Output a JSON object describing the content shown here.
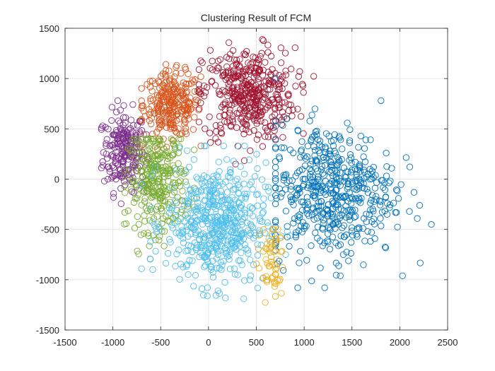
{
  "chart_data": {
    "type": "scatter",
    "title": "Clustering Result of FCM",
    "xlabel": "",
    "ylabel": "",
    "xlim": [
      -1500,
      2500
    ],
    "ylim": [
      -1500,
      1500
    ],
    "xticks": [
      -1500,
      -1000,
      -500,
      0,
      500,
      1000,
      1500,
      2000,
      2500
    ],
    "yticks": [
      -1500,
      -1000,
      -500,
      0,
      500,
      1000,
      1500
    ],
    "grid": true,
    "legend": "none",
    "marker": "open-circle",
    "clusters": [
      {
        "color": "#7E2F8E",
        "center": [
          -880,
          280
        ],
        "spread": [
          110,
          200
        ],
        "points": 230,
        "approx_extent": {
          "x": [
            -1120,
            -640
          ],
          "y": [
            -300,
            860
          ]
        }
      },
      {
        "color": "#D95319",
        "center": [
          -380,
          740
        ],
        "spread": [
          150,
          160
        ],
        "points": 260,
        "approx_extent": {
          "x": [
            -700,
            -80
          ],
          "y": [
            300,
            1140
          ]
        }
      },
      {
        "color": "#A2142F",
        "center": [
          420,
          840
        ],
        "spread": [
          240,
          230
        ],
        "points": 420,
        "approx_extent": {
          "x": [
            -100,
            1100
          ],
          "y": [
            150,
            1470
          ]
        }
      },
      {
        "color": "#77AC30",
        "center": [
          -540,
          -10
        ],
        "spread": [
          150,
          250
        ],
        "points": 300,
        "approx_extent": {
          "x": [
            -880,
            -150
          ],
          "y": [
            -800,
            400
          ]
        }
      },
      {
        "color": "#4DBEEE",
        "center": [
          80,
          -440
        ],
        "spread": [
          260,
          300
        ],
        "points": 520,
        "approx_extent": {
          "x": [
            -700,
            900
          ],
          "y": [
            -1260,
            330
          ]
        }
      },
      {
        "color": "#0072BD",
        "center": [
          1280,
          -120
        ],
        "spread": [
          330,
          330
        ],
        "points": 520,
        "approx_extent": {
          "x": [
            700,
            2330
          ],
          "y": [
            -1080,
            1000
          ]
        }
      },
      {
        "color": "#EDB120",
        "center": [
          650,
          -820
        ],
        "spread": [
          70,
          190
        ],
        "points": 60,
        "approx_extent": {
          "x": [
            500,
            800
          ],
          "y": [
            -1250,
            -500
          ]
        }
      }
    ]
  }
}
